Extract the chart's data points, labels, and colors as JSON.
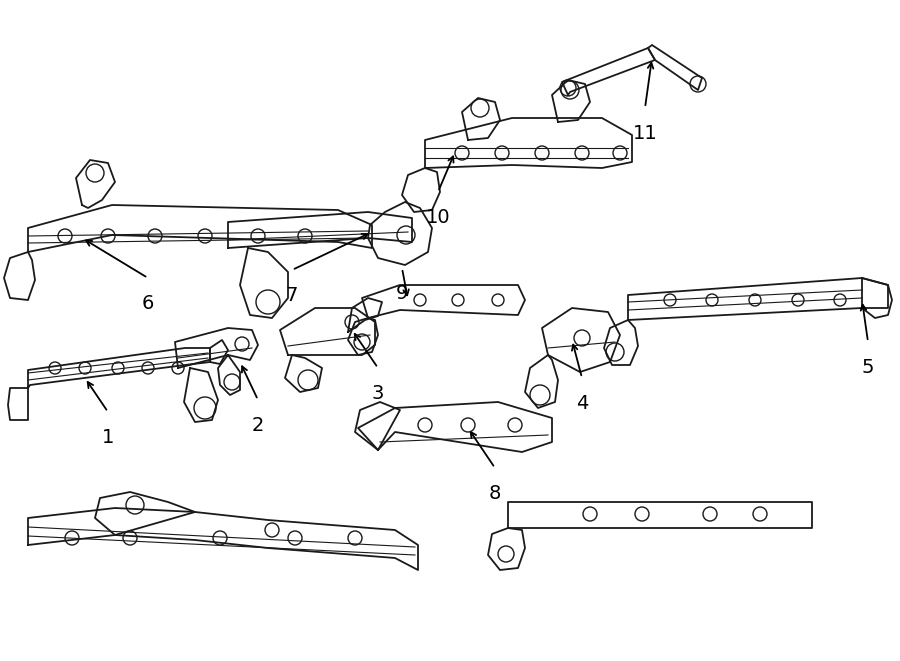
{
  "background_color": "#ffffff",
  "line_color": "#1a1a1a",
  "line_width": 1.3,
  "fig_width": 9.0,
  "fig_height": 6.61,
  "dpi": 100
}
